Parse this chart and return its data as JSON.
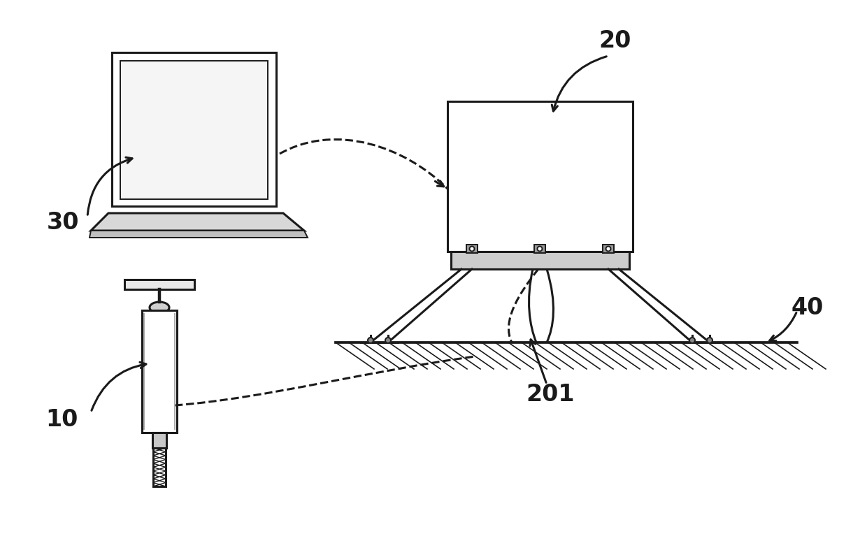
{
  "bg_color": "#ffffff",
  "line_color": "#1a1a1a",
  "label_20": "20",
  "label_30": "30",
  "label_10": "10",
  "label_40": "40",
  "label_201": "201",
  "font_size_labels": 24,
  "font_weight": "bold"
}
